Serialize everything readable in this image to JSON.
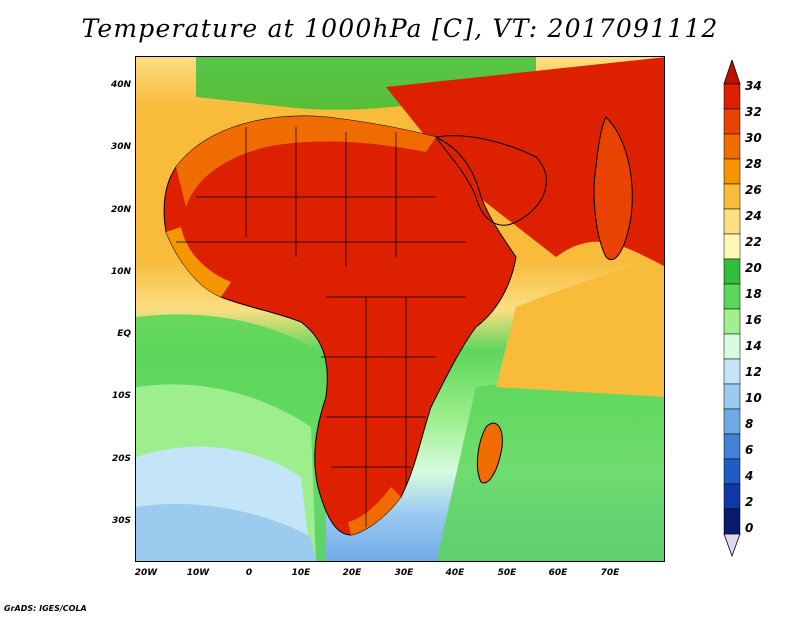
{
  "title": "Temperature at 1000hPa [C], VT: 2017091112",
  "footer": "GrADS: IGES/COLA",
  "map": {
    "lat_labels": [
      "40N",
      "30N",
      "20N",
      "10N",
      "EQ",
      "10S",
      "20S",
      "30S"
    ],
    "lon_labels": [
      "20W",
      "10W",
      "0",
      "10E",
      "20E",
      "30E",
      "40E",
      "50E",
      "60E",
      "70E"
    ]
  },
  "colorbar": {
    "labels": [
      "34",
      "32",
      "30",
      "28",
      "26",
      "24",
      "22",
      "20",
      "18",
      "16",
      "14",
      "12",
      "10",
      "8",
      "6",
      "4",
      "2",
      "0"
    ],
    "colors": [
      "#dc2000",
      "#e84300",
      "#f06b00",
      "#f59500",
      "#f8bb3a",
      "#fbde82",
      "#fff6b8",
      "#2fbf3a",
      "#5cd65a",
      "#9ff08e",
      "#d8fbe0",
      "#c4e4f8",
      "#9ccbf0",
      "#6fa9e8",
      "#3f82d8",
      "#1f5cc8",
      "#0e37a8",
      "#0a1a6e"
    ],
    "top_arrow_color": "#c01000",
    "bottom_arrow_color": "#e0d8f0"
  }
}
